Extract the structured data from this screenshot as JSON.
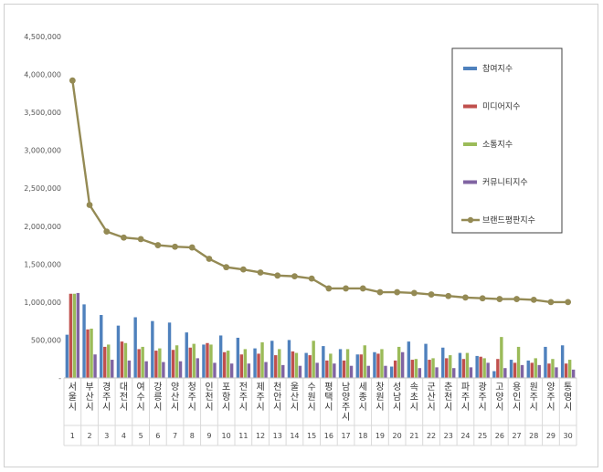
{
  "chart_data": {
    "type": "bar",
    "title": "",
    "xlabel": "",
    "ylabel": "",
    "ylim": [
      0,
      4500000
    ],
    "yticks": [
      {
        "value": 0,
        "label": "-"
      },
      {
        "value": 500000,
        "label": "500,000"
      },
      {
        "value": 1000000,
        "label": "1,000,000"
      },
      {
        "value": 1500000,
        "label": "1,500,000"
      },
      {
        "value": 2000000,
        "label": "2,000,000"
      },
      {
        "value": 2500000,
        "label": "2,500,000"
      },
      {
        "value": 3000000,
        "label": "3,000,000"
      },
      {
        "value": 3500000,
        "label": "3,500,000"
      },
      {
        "value": 4000000,
        "label": "4,000,000"
      },
      {
        "value": 4500000,
        "label": "4,500,000"
      }
    ],
    "grid": false,
    "legend": "right",
    "ranks": [
      "1",
      "2",
      "3",
      "4",
      "5",
      "6",
      "7",
      "8",
      "9",
      "10",
      "11",
      "12",
      "13",
      "14",
      "15",
      "16",
      "17",
      "18",
      "19",
      "20",
      "21",
      "22",
      "23",
      "24",
      "25",
      "26",
      "27",
      "28",
      "29",
      "30"
    ],
    "categories": [
      "서울시",
      "부산시",
      "경주시",
      "대전시",
      "여수시",
      "강릉시",
      "양산시",
      "청주시",
      "인천시",
      "포항시",
      "전주시",
      "제주시",
      "천안시",
      "울산시",
      "수원시",
      "평택시",
      "남양주시",
      "세종시",
      "창원시",
      "성남시",
      "속초시",
      "군산시",
      "춘천시",
      "파주시",
      "광주시",
      "고양시",
      "용인시",
      "원주시",
      "양주시",
      "통영시"
    ],
    "series": [
      {
        "name": "참여지수",
        "type": "bar",
        "color": "#4f81bd",
        "values": [
          570000,
          970000,
          830000,
          690000,
          800000,
          750000,
          730000,
          600000,
          440000,
          560000,
          530000,
          390000,
          490000,
          500000,
          330000,
          420000,
          380000,
          310000,
          340000,
          150000,
          480000,
          450000,
          400000,
          330000,
          290000,
          90000,
          240000,
          230000,
          410000,
          430000
        ]
      },
      {
        "name": "미디어지수",
        "type": "bar",
        "color": "#c0504d",
        "values": [
          1110000,
          640000,
          410000,
          480000,
          380000,
          360000,
          370000,
          400000,
          460000,
          340000,
          310000,
          320000,
          300000,
          350000,
          300000,
          230000,
          230000,
          310000,
          320000,
          230000,
          240000,
          240000,
          260000,
          250000,
          280000,
          250000,
          200000,
          200000,
          190000,
          190000
        ]
      },
      {
        "name": "소통지수",
        "type": "bar",
        "color": "#9bbb59",
        "values": [
          1110000,
          650000,
          440000,
          460000,
          410000,
          390000,
          430000,
          450000,
          440000,
          360000,
          380000,
          470000,
          380000,
          330000,
          490000,
          320000,
          380000,
          430000,
          380000,
          410000,
          250000,
          260000,
          300000,
          330000,
          260000,
          540000,
          410000,
          260000,
          250000,
          240000
        ]
      },
      {
        "name": "커뮤니티지수",
        "type": "bar",
        "color": "#8064a2",
        "values": [
          1120000,
          310000,
          240000,
          230000,
          220000,
          210000,
          220000,
          260000,
          200000,
          190000,
          190000,
          210000,
          170000,
          160000,
          200000,
          190000,
          160000,
          160000,
          160000,
          340000,
          130000,
          140000,
          130000,
          140000,
          200000,
          130000,
          170000,
          170000,
          140000,
          110000
        ]
      },
      {
        "name": "브랜드평판지수",
        "type": "line",
        "color": "#948a54",
        "values": [
          3920000,
          2280000,
          1930000,
          1850000,
          1830000,
          1750000,
          1730000,
          1720000,
          1570000,
          1460000,
          1430000,
          1390000,
          1350000,
          1340000,
          1310000,
          1180000,
          1180000,
          1180000,
          1130000,
          1130000,
          1120000,
          1100000,
          1080000,
          1060000,
          1050000,
          1040000,
          1040000,
          1030000,
          1000000,
          1000000
        ]
      }
    ]
  }
}
